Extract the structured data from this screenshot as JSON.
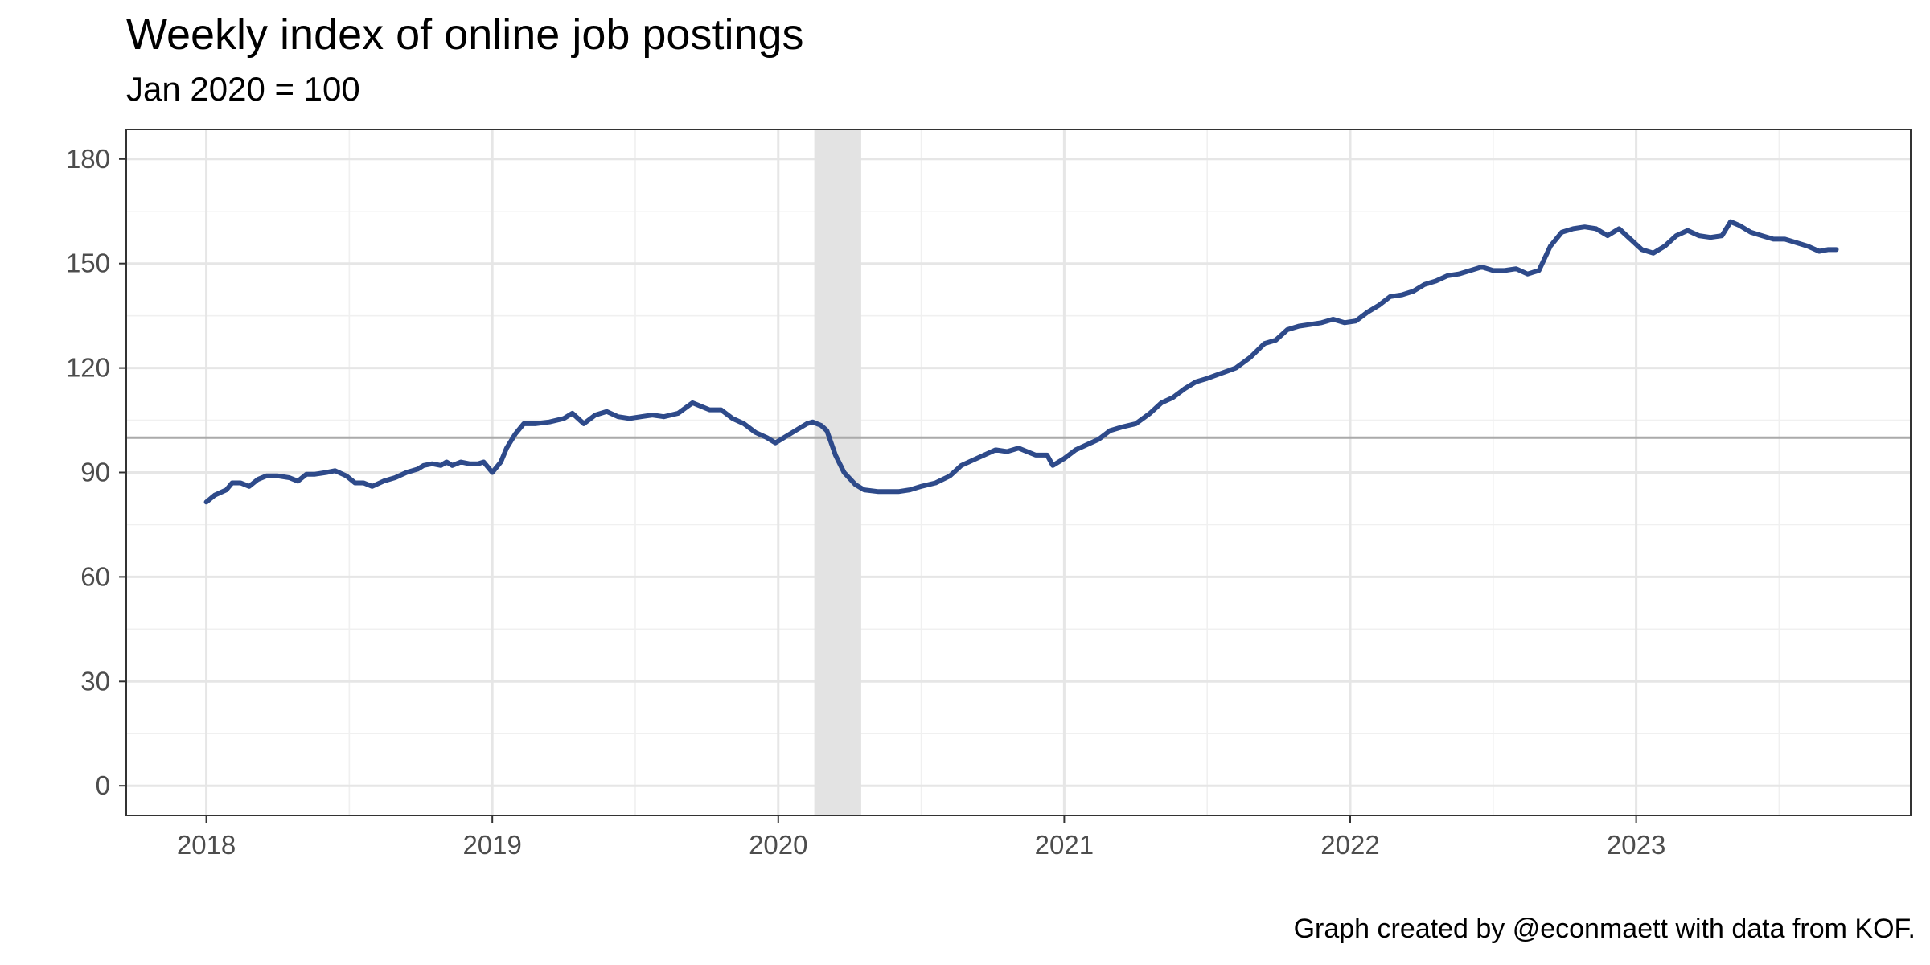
{
  "chart_data": {
    "type": "line",
    "title": "Weekly index of online job postings",
    "subtitle": "Jan 2020 = 100",
    "caption": "Graph created by @econmaett with data from KOF.",
    "xlabel": "",
    "ylabel": "",
    "xlim": [
      2017.72,
      2023.96
    ],
    "ylim": [
      -8.5,
      188.5
    ],
    "x_ticks": [
      2018,
      2019,
      2020,
      2021,
      2022,
      2023
    ],
    "x_tick_labels": [
      "2018",
      "2019",
      "2020",
      "2021",
      "2022",
      "2023"
    ],
    "y_ticks": [
      0,
      30,
      60,
      90,
      120,
      150,
      180
    ],
    "y_tick_labels": [
      "0",
      "30",
      "60",
      "90",
      "120",
      "150",
      "180"
    ],
    "grid": true,
    "reference_line": {
      "y": 100,
      "color": "#aaaaaa"
    },
    "shaded_period": {
      "x_start": 2020.126,
      "x_end": 2020.29,
      "color": "#e3e3e3"
    },
    "series": [
      {
        "color": "#2e4a8a",
        "points": [
          [
            2018.0,
            81.5
          ],
          [
            2018.03,
            83.5
          ],
          [
            2018.07,
            85
          ],
          [
            2018.09,
            87
          ],
          [
            2018.12,
            87
          ],
          [
            2018.15,
            86
          ],
          [
            2018.18,
            88
          ],
          [
            2018.21,
            89
          ],
          [
            2018.25,
            89
          ],
          [
            2018.29,
            88.5
          ],
          [
            2018.32,
            87.5
          ],
          [
            2018.35,
            89.5
          ],
          [
            2018.38,
            89.5
          ],
          [
            2018.42,
            90
          ],
          [
            2018.45,
            90.5
          ],
          [
            2018.49,
            89
          ],
          [
            2018.52,
            87
          ],
          [
            2018.55,
            87
          ],
          [
            2018.58,
            86
          ],
          [
            2018.62,
            87.5
          ],
          [
            2018.66,
            88.5
          ],
          [
            2018.7,
            90
          ],
          [
            2018.74,
            91
          ],
          [
            2018.76,
            92
          ],
          [
            2018.79,
            92.5
          ],
          [
            2018.82,
            92
          ],
          [
            2018.84,
            93
          ],
          [
            2018.86,
            92
          ],
          [
            2018.89,
            93
          ],
          [
            2018.92,
            92.5
          ],
          [
            2018.95,
            92.5
          ],
          [
            2018.97,
            93
          ],
          [
            2019.0,
            90
          ],
          [
            2019.03,
            93
          ],
          [
            2019.05,
            97
          ],
          [
            2019.08,
            101
          ],
          [
            2019.11,
            104
          ],
          [
            2019.15,
            104
          ],
          [
            2019.2,
            104.5
          ],
          [
            2019.25,
            105.5
          ],
          [
            2019.28,
            107
          ],
          [
            2019.32,
            104
          ],
          [
            2019.36,
            106.5
          ],
          [
            2019.4,
            107.5
          ],
          [
            2019.44,
            106
          ],
          [
            2019.48,
            105.5
          ],
          [
            2019.52,
            106
          ],
          [
            2019.56,
            106.5
          ],
          [
            2019.6,
            106
          ],
          [
            2019.65,
            107
          ],
          [
            2019.7,
            110
          ],
          [
            2019.76,
            108
          ],
          [
            2019.8,
            108
          ],
          [
            2019.84,
            105.5
          ],
          [
            2019.88,
            104
          ],
          [
            2019.92,
            101.5
          ],
          [
            2019.96,
            100
          ],
          [
            2019.99,
            98.5
          ],
          [
            2020.02,
            100
          ],
          [
            2020.06,
            102
          ],
          [
            2020.1,
            104
          ],
          [
            2020.12,
            104.5
          ],
          [
            2020.15,
            103.5
          ],
          [
            2020.17,
            102
          ],
          [
            2020.2,
            95
          ],
          [
            2020.23,
            90
          ],
          [
            2020.27,
            86.5
          ],
          [
            2020.3,
            85
          ],
          [
            2020.35,
            84.5
          ],
          [
            2020.42,
            84.5
          ],
          [
            2020.46,
            85
          ],
          [
            2020.5,
            86
          ],
          [
            2020.55,
            87
          ],
          [
            2020.6,
            89
          ],
          [
            2020.64,
            92
          ],
          [
            2020.68,
            93.5
          ],
          [
            2020.72,
            95
          ],
          [
            2020.76,
            96.5
          ],
          [
            2020.8,
            96
          ],
          [
            2020.84,
            97
          ],
          [
            2020.9,
            95
          ],
          [
            2020.94,
            95
          ],
          [
            2020.96,
            92
          ],
          [
            2021.0,
            94
          ],
          [
            2021.04,
            96.5
          ],
          [
            2021.08,
            98
          ],
          [
            2021.12,
            99.5
          ],
          [
            2021.16,
            102
          ],
          [
            2021.2,
            103
          ],
          [
            2021.25,
            104
          ],
          [
            2021.3,
            107
          ],
          [
            2021.34,
            110
          ],
          [
            2021.38,
            111.5
          ],
          [
            2021.42,
            114
          ],
          [
            2021.46,
            116
          ],
          [
            2021.5,
            117
          ],
          [
            2021.55,
            118.5
          ],
          [
            2021.6,
            120
          ],
          [
            2021.65,
            123
          ],
          [
            2021.7,
            127
          ],
          [
            2021.74,
            128
          ],
          [
            2021.78,
            131
          ],
          [
            2021.82,
            132
          ],
          [
            2021.86,
            132.5
          ],
          [
            2021.9,
            133
          ],
          [
            2021.94,
            134
          ],
          [
            2021.98,
            133
          ],
          [
            2022.02,
            133.5
          ],
          [
            2022.06,
            136
          ],
          [
            2022.1,
            138
          ],
          [
            2022.14,
            140.5
          ],
          [
            2022.18,
            141
          ],
          [
            2022.22,
            142
          ],
          [
            2022.26,
            144
          ],
          [
            2022.3,
            145
          ],
          [
            2022.34,
            146.5
          ],
          [
            2022.38,
            147
          ],
          [
            2022.42,
            148
          ],
          [
            2022.46,
            149
          ],
          [
            2022.5,
            148
          ],
          [
            2022.54,
            148
          ],
          [
            2022.58,
            148.5
          ],
          [
            2022.62,
            147
          ],
          [
            2022.66,
            148
          ],
          [
            2022.7,
            155
          ],
          [
            2022.74,
            159
          ],
          [
            2022.78,
            160
          ],
          [
            2022.82,
            160.5
          ],
          [
            2022.86,
            160
          ],
          [
            2022.9,
            158
          ],
          [
            2022.94,
            160
          ],
          [
            2022.98,
            157
          ],
          [
            2023.02,
            154
          ],
          [
            2023.06,
            153
          ],
          [
            2023.1,
            155
          ],
          [
            2023.14,
            158
          ],
          [
            2023.18,
            159.5
          ],
          [
            2023.22,
            158
          ],
          [
            2023.26,
            157.5
          ],
          [
            2023.3,
            158
          ],
          [
            2023.33,
            162
          ],
          [
            2023.36,
            161
          ],
          [
            2023.4,
            159
          ],
          [
            2023.44,
            158
          ],
          [
            2023.48,
            157
          ],
          [
            2023.52,
            157
          ],
          [
            2023.56,
            156
          ],
          [
            2023.6,
            155
          ],
          [
            2023.64,
            153.5
          ],
          [
            2023.67,
            154
          ],
          [
            2023.7,
            154
          ]
        ]
      }
    ]
  }
}
